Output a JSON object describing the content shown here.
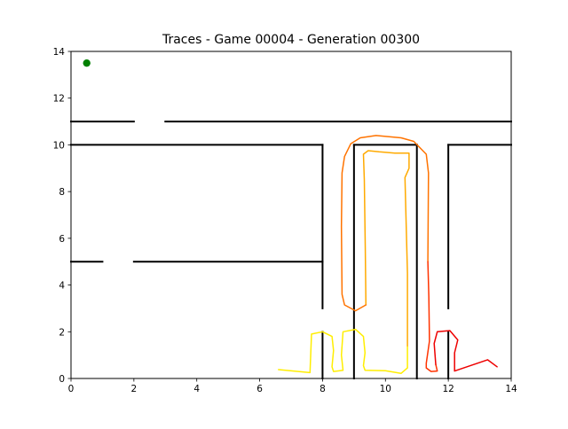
{
  "chart_data": {
    "type": "line",
    "title": "Traces - Game 00004 - Generation 00300",
    "xlabel": "",
    "ylabel": "",
    "xlim": [
      0,
      14
    ],
    "ylim": [
      0,
      14
    ],
    "xticks": [
      "0",
      "2",
      "4",
      "6",
      "8",
      "10",
      "12",
      "14"
    ],
    "yticks": [
      "0",
      "2",
      "4",
      "6",
      "8",
      "10",
      "12",
      "14"
    ],
    "grid": false,
    "legend": "none",
    "walls": [
      {
        "name": "wall-upper-left",
        "x": [
          0,
          2
        ],
        "y": [
          11,
          11
        ]
      },
      {
        "name": "wall-upper-right",
        "x": [
          3,
          14
        ],
        "y": [
          11,
          11
        ]
      },
      {
        "name": "wall-mid-left",
        "x": [
          0,
          8
        ],
        "y": [
          10,
          10
        ]
      },
      {
        "name": "wall-mid-center",
        "x": [
          9,
          11
        ],
        "y": [
          10,
          10
        ]
      },
      {
        "name": "wall-mid-right",
        "x": [
          12,
          14
        ],
        "y": [
          10,
          10
        ]
      },
      {
        "name": "wall-x8-upper",
        "x": [
          8,
          8
        ],
        "y": [
          10,
          3
        ]
      },
      {
        "name": "wall-x9-full",
        "x": [
          9,
          9
        ],
        "y": [
          10,
          0
        ]
      },
      {
        "name": "wall-x11-full",
        "x": [
          11,
          11
        ],
        "y": [
          10,
          0
        ]
      },
      {
        "name": "wall-x12-upper",
        "x": [
          12,
          12
        ],
        "y": [
          10,
          3
        ]
      },
      {
        "name": "wall-lower-left",
        "x": [
          0,
          1
        ],
        "y": [
          5,
          5
        ]
      },
      {
        "name": "wall-lower-mid",
        "x": [
          2,
          8
        ],
        "y": [
          5,
          5
        ]
      },
      {
        "name": "wall-x8-lower",
        "x": [
          8,
          8
        ],
        "y": [
          2,
          0
        ]
      },
      {
        "name": "wall-x12-lower",
        "x": [
          12,
          12
        ],
        "y": [
          2,
          0
        ]
      }
    ],
    "goal": {
      "x": 0.5,
      "y": 13.5,
      "color": "#008000"
    },
    "series": [
      {
        "color": "#ffee00",
        "x": [
          6.6,
          7.6,
          7.65,
          8.0,
          8.3,
          8.35,
          8.3,
          8.35,
          8.65,
          8.6,
          8.65,
          9.05,
          9.3,
          9.35,
          9.3,
          9.35,
          10.0,
          10.5,
          10.7,
          10.7
        ],
        "y": [
          0.38,
          0.25,
          1.9,
          2.0,
          1.8,
          1.2,
          0.5,
          0.3,
          0.35,
          1.0,
          2.0,
          2.1,
          1.8,
          1.1,
          0.55,
          0.35,
          0.33,
          0.22,
          0.45,
          1.4
        ]
      },
      {
        "color": "#ffaa00",
        "x": [
          10.7,
          10.7,
          10.62,
          10.75,
          10.75,
          10.3,
          9.8,
          9.45,
          9.3,
          9.33,
          9.36,
          9.38
        ],
        "y": [
          1.4,
          4.5,
          8.6,
          9.0,
          9.65,
          9.65,
          9.7,
          9.75,
          9.6,
          8.5,
          5.5,
          3.15
        ]
      },
      {
        "color": "#ff7300",
        "x": [
          9.38,
          9.05,
          8.7,
          8.62,
          8.6,
          8.62,
          8.7,
          8.9,
          9.2,
          9.7,
          10.5,
          10.9,
          11.3,
          11.37,
          11.35
        ],
        "y": [
          3.15,
          2.9,
          3.15,
          3.6,
          6.5,
          8.8,
          9.5,
          10.05,
          10.3,
          10.4,
          10.3,
          10.15,
          9.6,
          8.8,
          5.0
        ]
      },
      {
        "color": "#ff3300",
        "x": [
          11.35,
          11.38,
          11.4,
          11.3,
          11.3,
          11.45,
          11.65,
          11.6
        ],
        "y": [
          5.0,
          3.5,
          1.6,
          0.65,
          0.45,
          0.3,
          0.32,
          0.6
        ]
      },
      {
        "color": "#ee0000",
        "x": [
          11.6,
          11.55,
          11.65,
          12.05,
          12.3,
          12.2,
          12.2,
          13.25,
          13.55
        ],
        "y": [
          0.6,
          1.5,
          2.0,
          2.05,
          1.65,
          1.1,
          0.32,
          0.8,
          0.5
        ]
      }
    ]
  }
}
